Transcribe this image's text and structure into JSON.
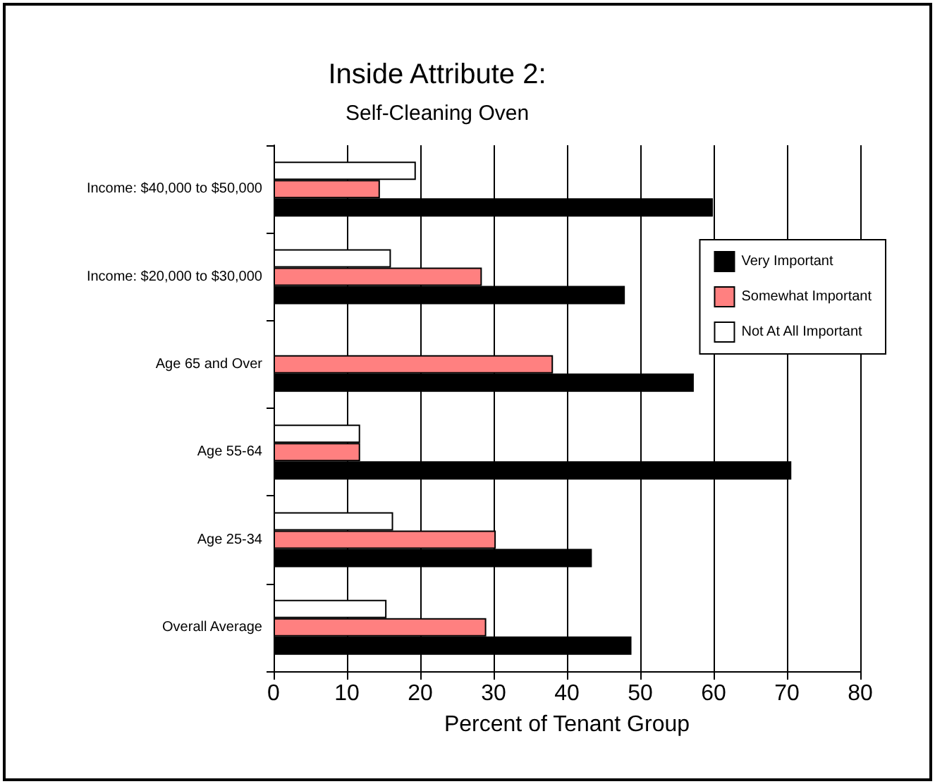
{
  "chart_data": {
    "type": "bar",
    "orientation": "horizontal",
    "title": "Inside Attribute 2:",
    "subtitle": "Self-Cleaning Oven",
    "xlabel": "Percent of Tenant Group",
    "categories": [
      "Income: $40,000 to $50,000",
      "Income: $20,000 to $30,000",
      "Age 65 and Over",
      "Age 55-64",
      "Age 25-34",
      "Overall Average"
    ],
    "series": [
      {
        "name": "Very Important",
        "color": "#000000",
        "values": [
          59.9,
          47.9,
          57.3,
          70.6,
          43.4,
          48.8
        ]
      },
      {
        "name": "Somewhat Important",
        "color": "#ff8080",
        "values": [
          14.5,
          28.4,
          38.1,
          11.8,
          30.3,
          29.0
        ]
      },
      {
        "name": "Not At All Important",
        "color": "#ffffff",
        "values": [
          19.4,
          16.0,
          null,
          11.8,
          16.3,
          15.4
        ]
      }
    ],
    "xlim": [
      0,
      80
    ],
    "xticks": [
      0,
      10,
      20,
      30,
      40,
      50,
      60,
      70,
      80
    ],
    "grid": "x",
    "legend": "top right"
  }
}
